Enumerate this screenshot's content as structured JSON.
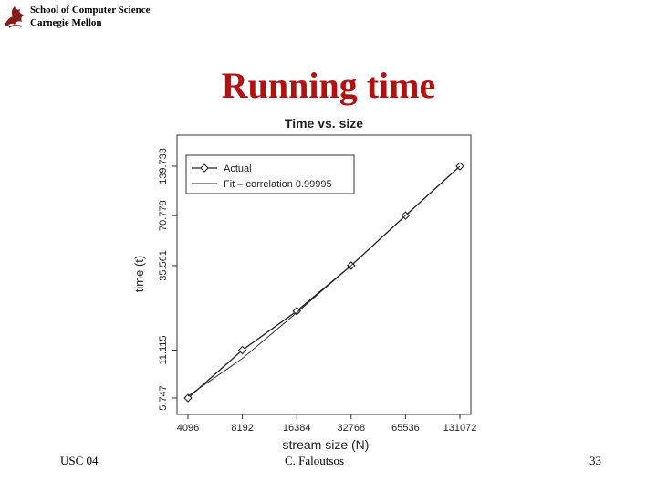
{
  "header": {
    "line1": "School of Computer Science",
    "line2": "Carnegie Mellon",
    "logo_icon": "cmu-dragon-logo"
  },
  "slide": {
    "title": "Running time",
    "title_color": "#b01212"
  },
  "footer": {
    "left": "USC 04",
    "center": "C. Faloutsos",
    "right": "33"
  },
  "chart_data": {
    "type": "line",
    "title": "Time vs. size",
    "xlabel": "stream size (N)",
    "ylabel": "time (t)",
    "x_scale": "log2",
    "y_scale": "log",
    "x": [
      4096,
      8192,
      16384,
      32768,
      65536,
      131072
    ],
    "xticks": [
      "4096",
      "8192",
      "16384",
      "32768",
      "65536",
      "131072"
    ],
    "yticks": [
      "5.747",
      "11.115",
      "35.561",
      "70.778",
      "139.733"
    ],
    "ytick_values": [
      5.747,
      11.115,
      35.561,
      70.778,
      139.733
    ],
    "series": [
      {
        "name": "Actual",
        "marker": "diamond",
        "values": [
          5.747,
          11.115,
          19.0,
          35.561,
          70.778,
          139.733
        ]
      },
      {
        "name": "Fit – correlation 0.99995",
        "marker": "none",
        "values": [
          5.9,
          9.9,
          18.6,
          35.6,
          70.8,
          139.733
        ]
      }
    ],
    "legend": {
      "position": "top-left"
    },
    "grid": false,
    "line_color": "#222222"
  }
}
